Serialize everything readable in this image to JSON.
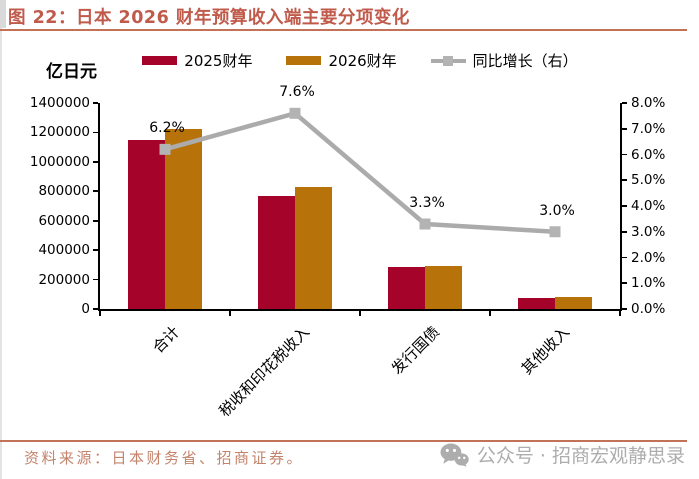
{
  "page": {
    "title": "图 22：日本 2026 财年预算收入端主要分项变化",
    "source_note": "资料来源：日本财务省、招商证券。",
    "footer_brand": "公众号 · 招商宏观静思录",
    "colors": {
      "accent_title": "#C05A4B",
      "accent_rule": "#C37257",
      "source_text": "#C4836B",
      "footer_gray": "#ADADAD",
      "bar_2025": "#A50329",
      "bar_2026": "#B7730A",
      "line_gray": "#ABABAB",
      "line_marker": "#B3B3B3",
      "axis": "#000000"
    }
  },
  "chart_data": {
    "type": "bar+line",
    "title": "日本 2026 财年预算收入端主要分项变化",
    "unit_label": "亿日元",
    "categories": [
      "合计",
      "税收和印花税收入",
      "发行国债",
      "其他收入"
    ],
    "series": [
      {
        "name": "2025财年",
        "type": "bar",
        "axis": "left",
        "color": "#A50329",
        "values": [
          1150000,
          770000,
          285000,
          78000
        ]
      },
      {
        "name": "2026财年",
        "type": "bar",
        "axis": "left",
        "color": "#B7730A",
        "values": [
          1221000,
          829000,
          294000,
          80300
        ]
      },
      {
        "name": "同比增长（右）",
        "type": "line",
        "axis": "right",
        "color": "#ABABAB",
        "values_pct": [
          6.2,
          7.6,
          3.3,
          3.0
        ],
        "point_labels": [
          "6.2%",
          "7.6%",
          "3.3%",
          "3.0%"
        ]
      }
    ],
    "left_axis": {
      "min": 0,
      "max": 1400000,
      "step": 200000,
      "tick_labels": [
        "1400000",
        "1200000",
        "1000000",
        "800000",
        "600000",
        "400000",
        "200000",
        "0"
      ]
    },
    "right_axis": {
      "min": 0,
      "max": 8,
      "step": 1,
      "tick_labels": [
        "8.0%",
        "7.0%",
        "6.0%",
        "5.0%",
        "4.0%",
        "3.0%",
        "2.0%",
        "1.0%",
        "0.0%"
      ]
    },
    "legend_position": "top",
    "grid": false
  }
}
